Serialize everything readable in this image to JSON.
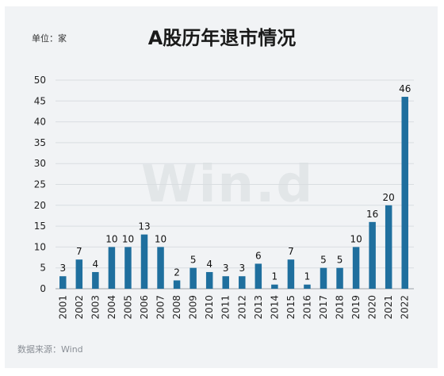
{
  "page": {
    "unit_label": "单位：家",
    "title": "A股历年退市情况",
    "source": "数据来源：Wind",
    "watermark": "Win.d"
  },
  "chart_data": {
    "type": "bar",
    "title": "A股历年退市情况",
    "xlabel": "",
    "ylabel": "",
    "ylim": [
      0,
      50
    ],
    "yticks": [
      0,
      5,
      10,
      15,
      20,
      25,
      30,
      35,
      40,
      45,
      50
    ],
    "grid": true,
    "bar_color": "#1f6f9e",
    "categories": [
      "2001",
      "2002",
      "2003",
      "2004",
      "2005",
      "2006",
      "2007",
      "2008",
      "2009",
      "2010",
      "2011",
      "2012",
      "2013",
      "2014",
      "2015",
      "2016",
      "2017",
      "2018",
      "2019",
      "2020",
      "2021",
      "2022"
    ],
    "values": [
      3,
      7,
      4,
      10,
      10,
      13,
      10,
      2,
      5,
      4,
      3,
      3,
      6,
      1,
      7,
      1,
      5,
      5,
      10,
      16,
      20,
      46
    ]
  }
}
